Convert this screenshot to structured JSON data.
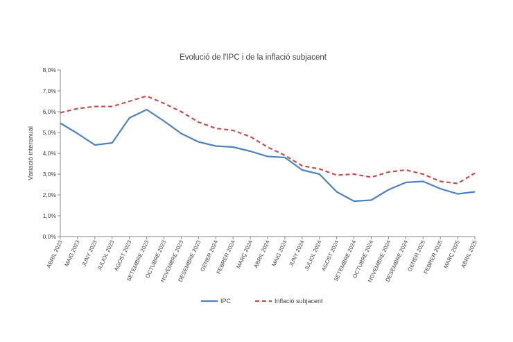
{
  "chart_data": {
    "type": "line",
    "title": "Evolució de l'IPC i de la inflació subjacent",
    "xlabel": "",
    "ylabel": "Variació interanual",
    "ylim": [
      0,
      8
    ],
    "yticks": [
      "0,0%",
      "1,0%",
      "2,0%",
      "3,0%",
      "4,0%",
      "5,0%",
      "6,0%",
      "7,0%",
      "8,0%"
    ],
    "grid": false,
    "legend": "bottom",
    "categories": [
      "ABRIL 2023",
      "MAIG 2023",
      "JUNY 2023",
      "JULIOL 2023",
      "AGOST 2023",
      "SETEMBRE 2023",
      "OCTUBRE 2023",
      "NOVEMBRE 2023",
      "DESEMBRE 2023",
      "GENER 2024",
      "FEBRER 2024",
      "MARÇ 2024",
      "ABRIL 2024",
      "MAIG 2024",
      "JUNY 2024",
      "JULIOL 2024",
      "AGOST 2024",
      "SETEMBRE 2024",
      "OCTUBRE 2024",
      "NOVEMBRE 2024",
      "DESEMBRE 2024",
      "GENER 2025",
      "FEBRER 2025",
      "MARÇ 2025",
      "ABRIL 2025"
    ],
    "series": [
      {
        "name": "IPC",
        "color": "#4f81bd",
        "dash": false,
        "values": [
          5.45,
          4.95,
          4.4,
          4.5,
          5.7,
          6.1,
          5.55,
          4.95,
          4.55,
          4.35,
          4.3,
          4.1,
          3.85,
          3.8,
          3.2,
          3.0,
          2.15,
          1.7,
          1.75,
          2.25,
          2.6,
          2.65,
          2.3,
          2.05,
          2.15
        ]
      },
      {
        "name": "Inflació subjacent",
        "color": "#c0504d",
        "dash": true,
        "values": [
          5.95,
          6.15,
          6.25,
          6.25,
          6.5,
          6.75,
          6.4,
          6.0,
          5.5,
          5.2,
          5.1,
          4.8,
          4.3,
          3.9,
          3.4,
          3.25,
          2.95,
          3.0,
          2.85,
          3.1,
          3.2,
          3.0,
          2.65,
          2.55,
          3.05
        ]
      }
    ]
  }
}
